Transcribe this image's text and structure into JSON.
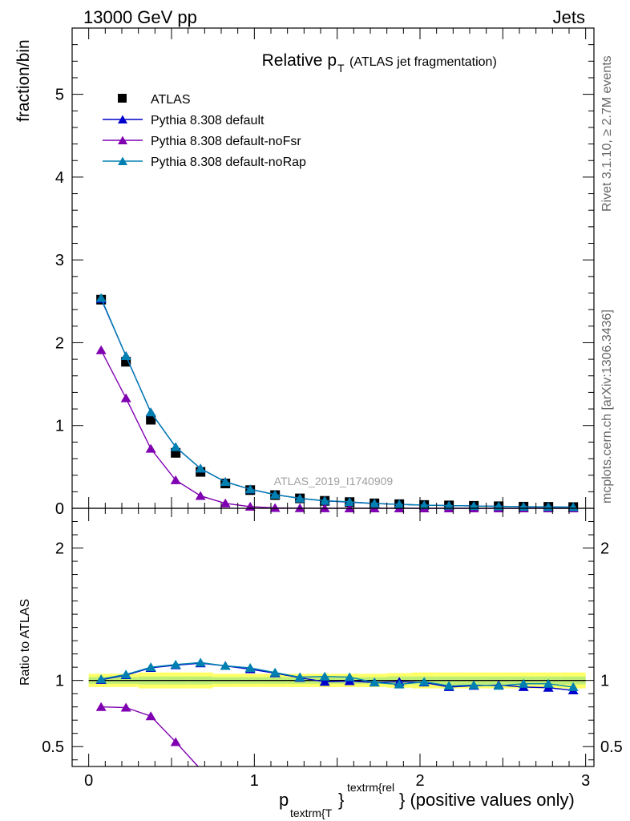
{
  "header": {
    "left": "13000 GeV pp",
    "right": "Jets"
  },
  "side_labels": {
    "rivet": "Rivet 3.1.10, ≥ 2.7M events",
    "mcplots": "mcplots.cern.ch [arXiv:1306.3436]"
  },
  "chart_data": [
    {
      "type": "scatter",
      "title_main": "Relative p",
      "title_sub": "T",
      "title_extra": "(ATLAS jet fragmentation)",
      "ylabel": "fraction/bin",
      "watermark": "ATLAS_2019_I1740909",
      "xlim": [
        -0.1,
        3.05
      ],
      "ylim": [
        0,
        5.8
      ],
      "yticks": [
        0,
        1,
        2,
        3,
        4,
        5
      ],
      "ytick_labels": [
        "0",
        "1",
        "2",
        "3",
        "4",
        "5"
      ],
      "legend_position": "top-left",
      "x": [
        0.075,
        0.225,
        0.375,
        0.525,
        0.675,
        0.825,
        0.975,
        1.125,
        1.275,
        1.425,
        1.575,
        1.725,
        1.875,
        2.025,
        2.175,
        2.325,
        2.475,
        2.625,
        2.775,
        2.925
      ],
      "series": [
        {
          "name": "ATLAS",
          "color": "#000000",
          "marker": "square",
          "values": [
            2.52,
            1.77,
            1.07,
            0.67,
            0.44,
            0.3,
            0.22,
            0.16,
            0.12,
            0.09,
            0.075,
            0.06,
            0.05,
            0.04,
            0.035,
            0.03,
            0.025,
            0.02,
            0.018,
            0.015
          ]
        },
        {
          "name": "Pythia 8.308 default",
          "color": "#0000cc",
          "marker": "triangle",
          "values": [
            2.53,
            1.84,
            1.16,
            0.74,
            0.48,
            0.32,
            0.23,
            0.165,
            0.12,
            0.09,
            0.075,
            0.058,
            0.048,
            0.038,
            0.033,
            0.028,
            0.024,
            0.019,
            0.017,
            0.014
          ]
        },
        {
          "name": "Pythia 8.308 default-noFsr",
          "color": "#7f00b0",
          "marker": "triangle",
          "values": [
            1.91,
            1.33,
            0.72,
            0.34,
            0.15,
            0.06,
            0.02,
            0.005,
            0.002,
            0.001,
            0.0005,
            0.0003,
            0.0002,
            0.0001,
            0.0001,
            0.0001,
            0.0001,
            0.0001,
            0.0001,
            0.0001
          ]
        },
        {
          "name": "Pythia 8.308 default-noRap",
          "color": "#0080b0",
          "marker": "triangle",
          "values": [
            2.54,
            1.84,
            1.16,
            0.74,
            0.48,
            0.32,
            0.23,
            0.165,
            0.12,
            0.092,
            0.078,
            0.059,
            0.048,
            0.038,
            0.033,
            0.028,
            0.024,
            0.019,
            0.017,
            0.014
          ]
        }
      ]
    },
    {
      "type": "scatter",
      "ylabel": "Ratio to ATLAS",
      "xlabel_main": "p",
      "xlabel_sub": "textrm{T",
      "xlabel_brace": "}",
      "xlabel_sup": "textrm{rel",
      "xlabel_rest": "} (positive values only)",
      "xlim": [
        -0.1,
        3.05
      ],
      "ylim": [
        0.35,
        2.3
      ],
      "yticks": [
        0.5,
        1,
        2
      ],
      "ytick_labels": [
        "0.5",
        "1",
        "2"
      ],
      "xticks": [
        0,
        1,
        2,
        3
      ],
      "xtick_labels": [
        "0",
        "1",
        "2",
        "3"
      ],
      "reference": 1,
      "band_colors": [
        "#ffff66",
        "#bfee77"
      ],
      "band_outer": [
        0.05,
        0.05,
        0.06,
        0.06,
        0.06,
        0.05,
        0.05,
        0.05,
        0.05,
        0.05,
        0.05,
        0.05,
        0.055,
        0.06,
        0.06,
        0.06,
        0.06,
        0.06,
        0.06,
        0.06
      ],
      "band_inner": [
        0.025,
        0.025,
        0.03,
        0.03,
        0.03,
        0.025,
        0.025,
        0.025,
        0.025,
        0.025,
        0.025,
        0.025,
        0.03,
        0.03,
        0.03,
        0.03,
        0.03,
        0.03,
        0.03,
        0.03
      ],
      "x": [
        0.075,
        0.225,
        0.375,
        0.525,
        0.675,
        0.825,
        0.975,
        1.125,
        1.275,
        1.425,
        1.575,
        1.725,
        1.875,
        2.025,
        2.175,
        2.325,
        2.475,
        2.625,
        2.775,
        2.925
      ],
      "series": [
        {
          "name": "Pythia 8.308 default",
          "color": "#0000cc",
          "marker": "triangle",
          "values": [
            1.005,
            1.04,
            1.095,
            1.115,
            1.13,
            1.11,
            1.085,
            1.055,
            1.02,
            0.99,
            0.995,
            0.985,
            0.99,
            0.985,
            0.95,
            0.96,
            0.965,
            0.95,
            0.945,
            0.925
          ]
        },
        {
          "name": "Pythia 8.308 default-noFsr",
          "color": "#7f00b0",
          "marker": "triangle",
          "values": [
            0.8,
            0.795,
            0.73,
            0.535,
            0.33
          ]
        },
        {
          "name": "Pythia 8.308 default-noRap",
          "color": "#0080b0",
          "marker": "triangle",
          "values": [
            1.01,
            1.045,
            1.1,
            1.12,
            1.135,
            1.11,
            1.095,
            1.06,
            1.025,
            1.03,
            1.025,
            0.985,
            0.97,
            0.99,
            0.96,
            0.965,
            0.96,
            0.975,
            0.975,
            0.95
          ]
        }
      ]
    }
  ]
}
